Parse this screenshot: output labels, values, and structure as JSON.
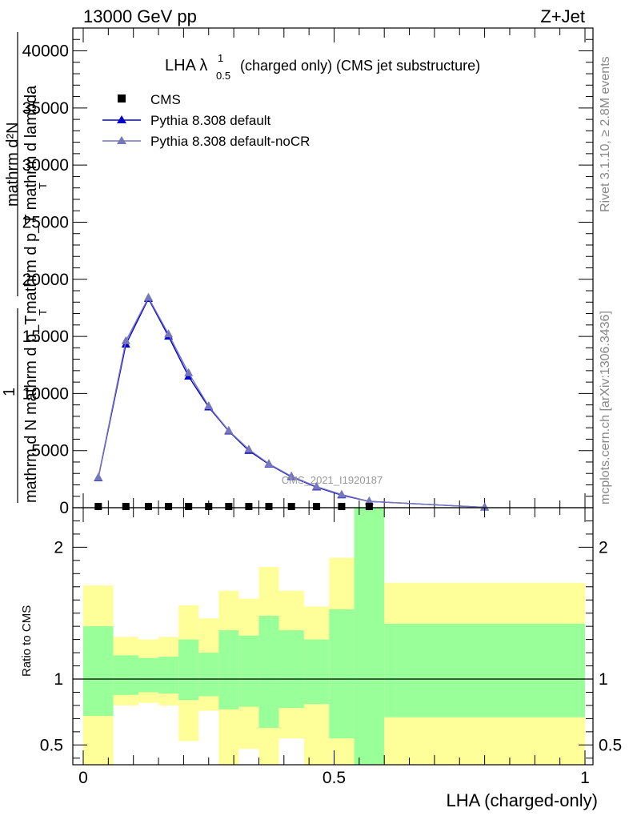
{
  "header": {
    "left": "13000 GeV pp",
    "right": "Z+Jet"
  },
  "side": {
    "rivet": "Rivet 3.1.10, ≥ 2.8M events",
    "mcplots": "mcplots.cern.ch [arXiv:1306.3436]"
  },
  "chart_data": [
    {
      "type": "line",
      "title_main": "LHA λ",
      "title_sup": "1",
      "title_sub": "0.5",
      "title_rest": "(charged only) (CMS jet substructure)",
      "ylabel_frac_num": "mathrm d²N",
      "ylabel_frac_den": "mathrm d p_T mathrm d lambda",
      "ylabel_frac_sub": "T",
      "ylabel_one": "1",
      "ylabel_norm": "mathrm d N mathrm d p_T",
      "ylabel_norm_sub": "T",
      "watermark": "CMS_2021_I1920187",
      "ylim": [
        0,
        42000
      ],
      "xlim": [
        0,
        1
      ],
      "yticks": [
        0,
        5000,
        10000,
        15000,
        20000,
        25000,
        30000,
        35000,
        40000
      ],
      "ytick_labels": [
        "0",
        "5000",
        "10000",
        "15000",
        "20000",
        "25000",
        "30000",
        "35000",
        "40000"
      ],
      "legend_position": "top-left",
      "cms_label": "CMS",
      "cms_x": [
        0.03,
        0.085,
        0.13,
        0.17,
        0.21,
        0.25,
        0.29,
        0.33,
        0.37,
        0.415,
        0.465,
        0.515,
        0.57
      ],
      "cms_y": [
        0,
        0,
        0,
        0,
        0,
        0,
        0,
        0,
        0,
        0,
        0,
        0,
        0
      ],
      "series": [
        {
          "name": "Pythia 8.308 default",
          "color": "#0000cc",
          "x": [
            0.03,
            0.085,
            0.13,
            0.17,
            0.21,
            0.25,
            0.29,
            0.33,
            0.37,
            0.415,
            0.465,
            0.515,
            0.57,
            0.8
          ],
          "y": [
            2600,
            14300,
            18300,
            15000,
            11500,
            8800,
            6700,
            5000,
            3800,
            2700,
            1800,
            1100,
            550,
            30
          ]
        },
        {
          "name": "Pythia 8.308 default-noCR",
          "color": "#7777bb",
          "x": [
            0.03,
            0.085,
            0.13,
            0.17,
            0.21,
            0.25,
            0.29,
            0.33,
            0.37,
            0.415,
            0.465,
            0.515,
            0.57,
            0.8
          ],
          "y": [
            2650,
            14600,
            18400,
            15200,
            11800,
            8900,
            6750,
            5100,
            3850,
            2750,
            1850,
            1150,
            560,
            30
          ]
        }
      ]
    },
    {
      "type": "area",
      "ylabel": "Ratio to CMS",
      "xlabel": "LHA (charged-only)",
      "ylim": [
        0.35,
        2.3
      ],
      "xlim": [
        0,
        1
      ],
      "yticks": [
        0.5,
        1,
        2
      ],
      "ytick_labels": [
        "0.5",
        "1",
        "2"
      ],
      "xticks": [
        0,
        0.5,
        1
      ],
      "xtick_labels": [
        "0",
        "0.5",
        "1"
      ],
      "reference": 1,
      "bins": [
        {
          "x0": 0.0,
          "x1": 0.06,
          "y_lo": 0.72,
          "y_hi": 1.4,
          "g_lo": 0.35,
          "g_hi": 1.71
        },
        {
          "x0": 0.06,
          "x1": 0.11,
          "y_lo": 0.88,
          "y_hi": 1.18,
          "g_lo": 0.8,
          "g_hi": 1.32
        },
        {
          "x0": 0.11,
          "x1": 0.15,
          "y_lo": 0.9,
          "y_hi": 1.16,
          "g_lo": 0.82,
          "g_hi": 1.3
        },
        {
          "x0": 0.15,
          "x1": 0.19,
          "y_lo": 0.89,
          "y_hi": 1.17,
          "g_lo": 0.8,
          "g_hi": 1.32
        },
        {
          "x0": 0.19,
          "x1": 0.23,
          "y_lo": 0.84,
          "y_hi": 1.3,
          "g_lo": 0.53,
          "g_hi": 1.56
        },
        {
          "x0": 0.23,
          "x1": 0.27,
          "y_lo": 0.87,
          "y_hi": 1.2,
          "g_lo": 0.76,
          "g_hi": 1.46
        },
        {
          "x0": 0.27,
          "x1": 0.31,
          "y_lo": 0.77,
          "y_hi": 1.37,
          "g_lo": 0.35,
          "g_hi": 1.67
        },
        {
          "x0": 0.31,
          "x1": 0.35,
          "y_lo": 0.79,
          "y_hi": 1.33,
          "g_lo": 0.47,
          "g_hi": 1.61
        },
        {
          "x0": 0.35,
          "x1": 0.39,
          "y_lo": 0.63,
          "y_hi": 1.48,
          "g_lo": 0.35,
          "g_hi": 1.85
        },
        {
          "x0": 0.39,
          "x1": 0.44,
          "y_lo": 0.78,
          "y_hi": 1.37,
          "g_lo": 0.55,
          "g_hi": 1.67
        },
        {
          "x0": 0.44,
          "x1": 0.49,
          "y_lo": 0.81,
          "y_hi": 1.3,
          "g_lo": 0.35,
          "g_hi": 1.55
        },
        {
          "x0": 0.49,
          "x1": 0.54,
          "y_lo": 0.55,
          "y_hi": 1.53,
          "g_lo": 0.35,
          "g_hi": 1.92
        },
        {
          "x0": 0.54,
          "x1": 0.6,
          "y_lo": 0.35,
          "y_hi": 2.3,
          "g_lo": 0.35,
          "g_hi": 2.3
        },
        {
          "x0": 0.6,
          "x1": 1.0,
          "y_lo": 0.71,
          "y_hi": 1.42,
          "g_lo": 0.35,
          "g_hi": 1.73
        }
      ],
      "colors": {
        "yellow": "#ffff99",
        "green": "#99ff99"
      }
    }
  ]
}
